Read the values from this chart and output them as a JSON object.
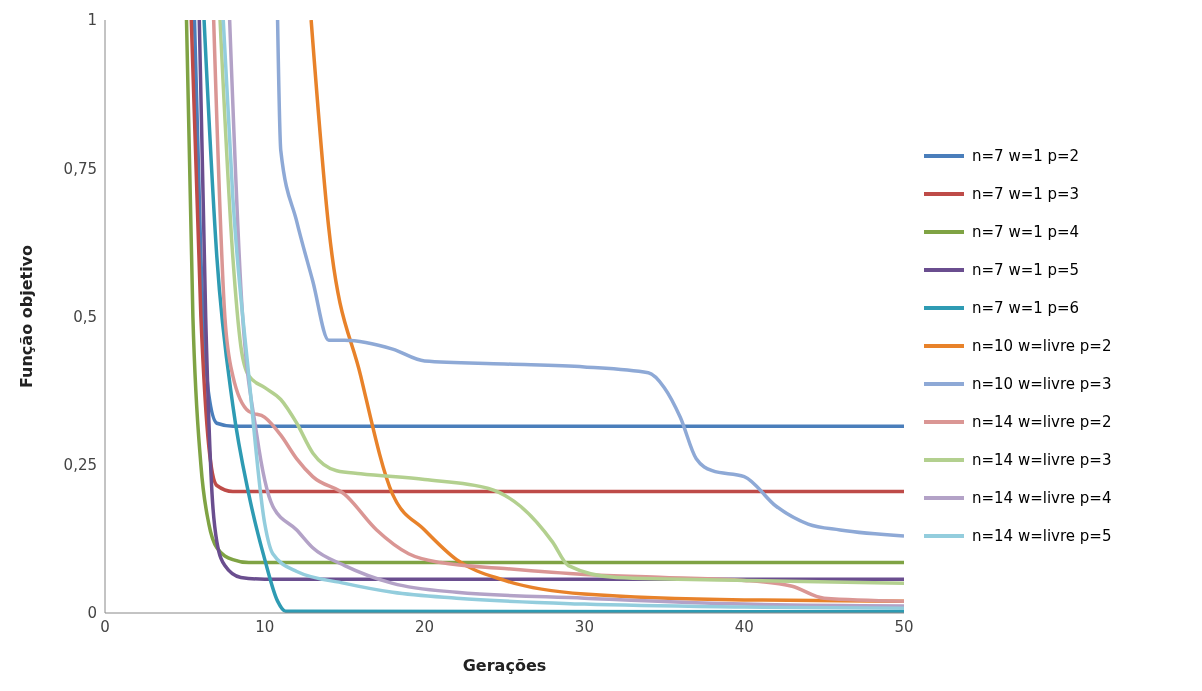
{
  "chart_data": {
    "type": "line",
    "xlabel": "Gerações",
    "ylabel": "Função objetivo",
    "xlim": [
      0,
      50
    ],
    "xticks": [
      0,
      10,
      20,
      30,
      40,
      50
    ],
    "ylim": [
      0,
      1
    ],
    "yticks": [
      0,
      {
        "value": 0.25,
        "label": "0,25"
      },
      {
        "value": 0.5,
        "label": "0,5"
      },
      {
        "value": 0.75,
        "label": "0,75"
      },
      1
    ],
    "grid": false,
    "legend": "right",
    "marker": "none",
    "line_style": "solid",
    "series": [
      {
        "name": "n=7 w=1 p=2",
        "color": "#4a7ebb",
        "x": [
          5.6,
          6,
          6.5,
          7,
          8,
          50
        ],
        "values": [
          1,
          0.6,
          0.367,
          0.32,
          0.315,
          0.315
        ]
      },
      {
        "name": "n=7 w=1 p=3",
        "color": "#be4b48",
        "x": [
          5.4,
          6,
          6.5,
          7,
          8,
          50
        ],
        "values": [
          1,
          0.5,
          0.28,
          0.215,
          0.205,
          0.205
        ]
      },
      {
        "name": "n=7 w=1 p=4",
        "color": "#7fa344",
        "x": [
          5.1,
          5.5,
          6,
          6.5,
          7,
          8,
          9,
          50
        ],
        "values": [
          1,
          0.5,
          0.25,
          0.15,
          0.11,
          0.09,
          0.085,
          0.085
        ]
      },
      {
        "name": "n=7 w=1 p=5",
        "color": "#6a4e8f",
        "x": [
          5.9,
          6.3,
          6.7,
          7,
          7.5,
          8.5,
          10,
          50
        ],
        "values": [
          1,
          0.5,
          0.2,
          0.12,
          0.08,
          0.06,
          0.057,
          0.057
        ]
      },
      {
        "name": "n=7 w=1 p=6",
        "color": "#2e9bb3",
        "x": [
          6.2,
          7,
          8,
          9,
          10,
          10.8,
          11.3,
          50
        ],
        "values": [
          1,
          0.6,
          0.35,
          0.2,
          0.09,
          0.02,
          0.003,
          0.002
        ]
      },
      {
        "name": "n=10 w=livre p=2",
        "color": "#e8822a",
        "x": [
          12.9,
          14,
          16,
          18,
          20,
          22,
          25,
          30,
          40,
          50
        ],
        "values": [
          1,
          0.65,
          0.4,
          0.2,
          0.14,
          0.09,
          0.055,
          0.032,
          0.022,
          0.02
        ]
      },
      {
        "name": "n=10 w=livre p=3",
        "color": "#8ea9d6",
        "x": [
          10.8,
          11,
          12,
          13,
          14,
          15,
          18,
          20,
          25,
          30,
          34,
          35,
          36,
          37,
          38,
          40,
          42,
          44,
          46,
          50
        ],
        "values": [
          1,
          0.78,
          0.66,
          0.56,
          0.46,
          0.46,
          0.445,
          0.425,
          0.42,
          0.415,
          0.405,
          0.38,
          0.33,
          0.26,
          0.24,
          0.23,
          0.18,
          0.15,
          0.14,
          0.13
        ]
      },
      {
        "name": "n=14 w=livre p=2",
        "color": "#da9694",
        "x": [
          6.8,
          7.5,
          8,
          9,
          10,
          11,
          12,
          13,
          15,
          17,
          19,
          21,
          25,
          30,
          35,
          40,
          43,
          45,
          50
        ],
        "values": [
          1,
          0.5,
          0.4,
          0.34,
          0.33,
          0.3,
          0.26,
          0.23,
          0.2,
          0.14,
          0.1,
          0.085,
          0.075,
          0.065,
          0.06,
          0.055,
          0.045,
          0.025,
          0.02
        ]
      },
      {
        "name": "n=14 w=livre p=3",
        "color": "#b3d08f",
        "x": [
          7.2,
          8,
          8.5,
          9,
          10,
          11,
          12,
          13,
          14.5,
          16,
          20,
          24,
          26,
          28,
          29,
          32,
          40,
          50
        ],
        "values": [
          1,
          0.6,
          0.45,
          0.4,
          0.38,
          0.36,
          0.32,
          0.27,
          0.24,
          0.235,
          0.225,
          0.21,
          0.18,
          0.12,
          0.08,
          0.06,
          0.055,
          0.05
        ]
      },
      {
        "name": "n=14 w=livre p=4",
        "color": "#b3a2c7",
        "x": [
          7.8,
          8.5,
          9.5,
          10.5,
          12,
          13,
          15,
          18,
          22,
          30,
          40,
          50
        ],
        "values": [
          1,
          0.55,
          0.3,
          0.18,
          0.14,
          0.11,
          0.08,
          0.05,
          0.035,
          0.025,
          0.015,
          0.012
        ]
      },
      {
        "name": "n=14 w=livre p=5",
        "color": "#93cddd",
        "x": [
          7.4,
          8,
          9,
          10,
          10.5,
          12,
          15,
          18,
          22,
          30,
          40,
          50
        ],
        "values": [
          1,
          0.7,
          0.4,
          0.15,
          0.1,
          0.07,
          0.05,
          0.035,
          0.025,
          0.015,
          0.01,
          0.008
        ]
      }
    ]
  }
}
